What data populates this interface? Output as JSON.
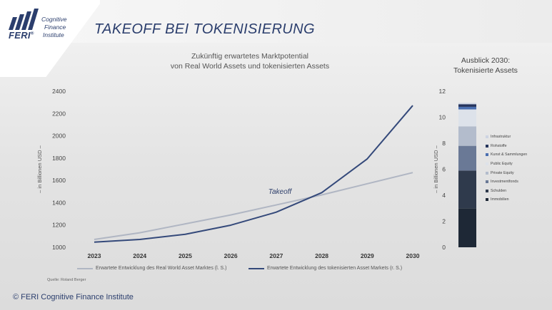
{
  "header": {
    "logo_name": "FERI",
    "logo_registered": "®",
    "logo_text": [
      "Cognitive",
      "Finance",
      "Institute"
    ],
    "title": "TAKEOFF BEI TOKENISIERUNG"
  },
  "main_chart": {
    "subtitle": [
      "Zukünftig erwartetes Marktpotential",
      "von Real World Assets und tokenisierten Assets"
    ],
    "source": "Quelle: Roland Berger"
  },
  "side_chart": {
    "title": [
      "Ausblick 2030:",
      "Tokenisierte Assets"
    ]
  },
  "footer": {
    "copyright": "© FERI Cognitive Finance Institute"
  },
  "colors": {
    "rwa_line": "#b0b6c3",
    "token_line": "#34497a"
  },
  "chart_data": [
    {
      "type": "line",
      "title": "Zukünftig erwartetes Marktpotential von Real World Assets und tokenisierten Assets",
      "x": [
        "2023",
        "2024",
        "2025",
        "2026",
        "2027",
        "2028",
        "2029",
        "2030"
      ],
      "series": [
        {
          "name": "Erwartete Entwicklung des Real World Asset Marktes (l. S.)",
          "axis": "left",
          "values": [
            1070,
            1130,
            1210,
            1290,
            1380,
            1470,
            1570,
            1670
          ]
        },
        {
          "name": "Erwartete Entwicklung des tokenisierten Asset Markets (r. S.)",
          "axis": "right",
          "values": [
            0.4,
            0.6,
            1.0,
            1.7,
            2.7,
            4.2,
            6.8,
            10.9
          ]
        }
      ],
      "ylabel": "– in Billionen USD –",
      "ylim": [
        1000,
        2400
      ],
      "yticks": [
        1000,
        1200,
        1400,
        1600,
        1800,
        2000,
        2200,
        2400
      ],
      "y2label": "– in Billionen USD –",
      "y2lim": [
        0,
        12
      ],
      "y2ticks": [
        0,
        2,
        4,
        6,
        8,
        10,
        12
      ],
      "annotations": [
        "Takeoff"
      ],
      "grid": false,
      "legend": "bottom"
    },
    {
      "type": "bar",
      "title": "Ausblick 2030: Tokenisierte Assets",
      "categories": [
        "2030"
      ],
      "stacked": true,
      "ylim": [
        0,
        12
      ],
      "series": [
        {
          "name": "Immobilien",
          "values": [
            3.0
          ],
          "color": "#1e2836"
        },
        {
          "name": "Schulden",
          "values": [
            2.9
          ],
          "color": "#2f3a4c"
        },
        {
          "name": "Investmentfonds",
          "values": [
            1.9
          ],
          "color": "#6a7996"
        },
        {
          "name": "Private Equity",
          "values": [
            1.5
          ],
          "color": "#b3bccc"
        },
        {
          "name": "Public Equity",
          "values": [
            1.3
          ],
          "color": "#dde2ea"
        },
        {
          "name": "Kunst & Sammlungen",
          "values": [
            0.2
          ],
          "color": "#4a6fb1"
        },
        {
          "name": "Rohstoffe",
          "values": [
            0.2
          ],
          "color": "#24345c"
        },
        {
          "name": "Infrastruktur",
          "values": [
            0.1
          ],
          "color": "#cdd4e2"
        }
      ],
      "legend_order": [
        "Infrastruktur",
        "Rohstoffe",
        "Kunst & Sammlungen",
        "Public Equity",
        "Private Equity",
        "Investmentfonds",
        "Schulden",
        "Immobilien"
      ]
    }
  ]
}
